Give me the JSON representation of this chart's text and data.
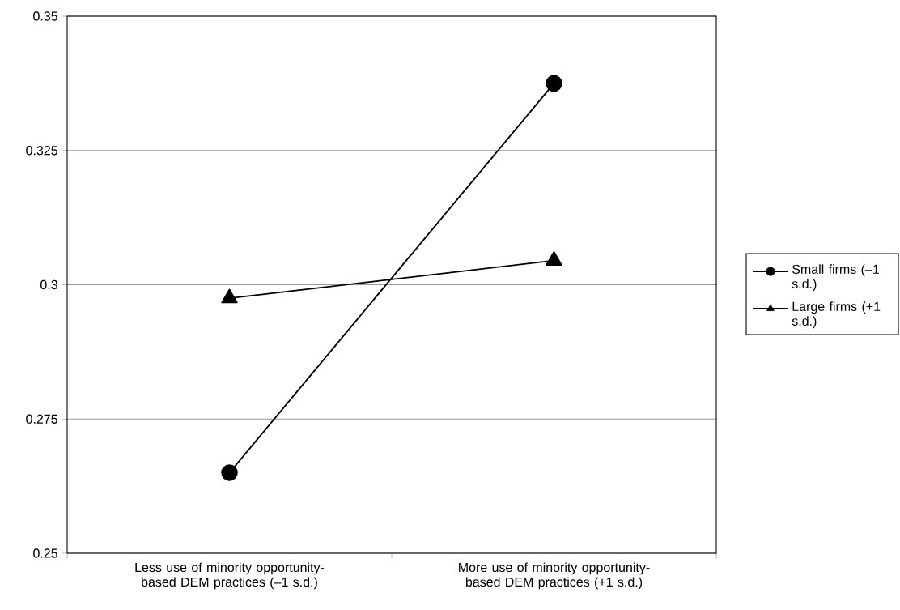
{
  "chart_data": {
    "type": "line",
    "categories": [
      "Less use of minority opportunity-based DEM practices (–1 s.d.)",
      "More use of minority opportunity-based DEM practices (+1 s.d.)"
    ],
    "series": [
      {
        "name": "Small firms (–1 s.d.)",
        "color": "#000000",
        "values": [
          0.265,
          0.3375
        ],
        "marker": "circle"
      },
      {
        "name": "Large firms (+1 s.d.)",
        "color": "#000000",
        "values": [
          0.2975,
          0.3045
        ],
        "marker": "triangle"
      }
    ],
    "ylim": [
      0.25,
      0.35
    ],
    "yticks": [
      0.25,
      0.275,
      0.3,
      0.325,
      0.35
    ],
    "grid": "y",
    "legend": "right",
    "line_style": "solid"
  }
}
